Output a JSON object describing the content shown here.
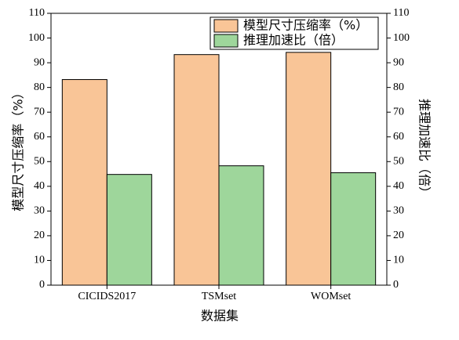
{
  "chart_data": {
    "type": "bar",
    "categories": [
      "CICIDS2017",
      "TSMset",
      "WOMset"
    ],
    "series": [
      {
        "name": "模型尺寸压缩率（%）",
        "color": "#f9c597",
        "values": [
          83.2,
          93.3,
          94.2
        ]
      },
      {
        "name": "推理加速比（倍）",
        "color": "#9ed69b",
        "values": [
          44.8,
          48.3,
          45.5
        ],
        "axis": "y2"
      }
    ],
    "xlabel": "数据集",
    "ylabel": "模型尺寸压缩率（%）",
    "y2label": "推理加速比（倍）",
    "ylim": [
      0,
      110
    ],
    "yticks": [
      0,
      10,
      20,
      30,
      40,
      50,
      60,
      70,
      80,
      90,
      100,
      110
    ],
    "y2lim": [
      0,
      110
    ],
    "y2ticks": [
      0,
      10,
      20,
      30,
      40,
      50,
      60,
      70,
      80,
      90,
      100,
      110
    ],
    "legend": "upper right"
  }
}
